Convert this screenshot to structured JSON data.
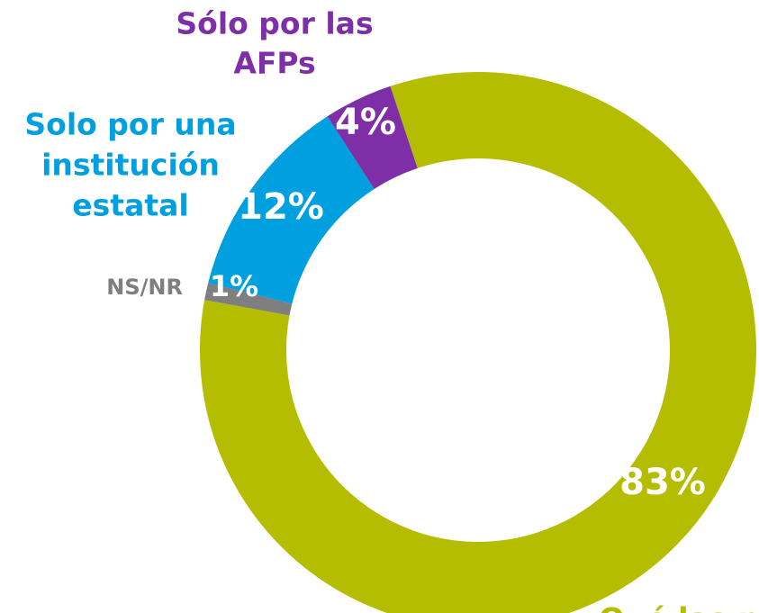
{
  "chart_data": {
    "type": "donut",
    "categories": [
      [
        "Qué las p"
      ],
      [
        "NS/NR"
      ],
      [
        "Solo por una",
        "institución",
        "estatal"
      ],
      [
        "Sólo por las",
        "AFPs"
      ]
    ],
    "values": [
      83,
      1,
      12,
      4
    ],
    "value_labels": [
      "83%",
      "1%",
      "12%",
      "4%"
    ],
    "colors": [
      "#b5bd00",
      "#7f7f7f",
      "#009fdf",
      "#7e2fa8"
    ]
  }
}
